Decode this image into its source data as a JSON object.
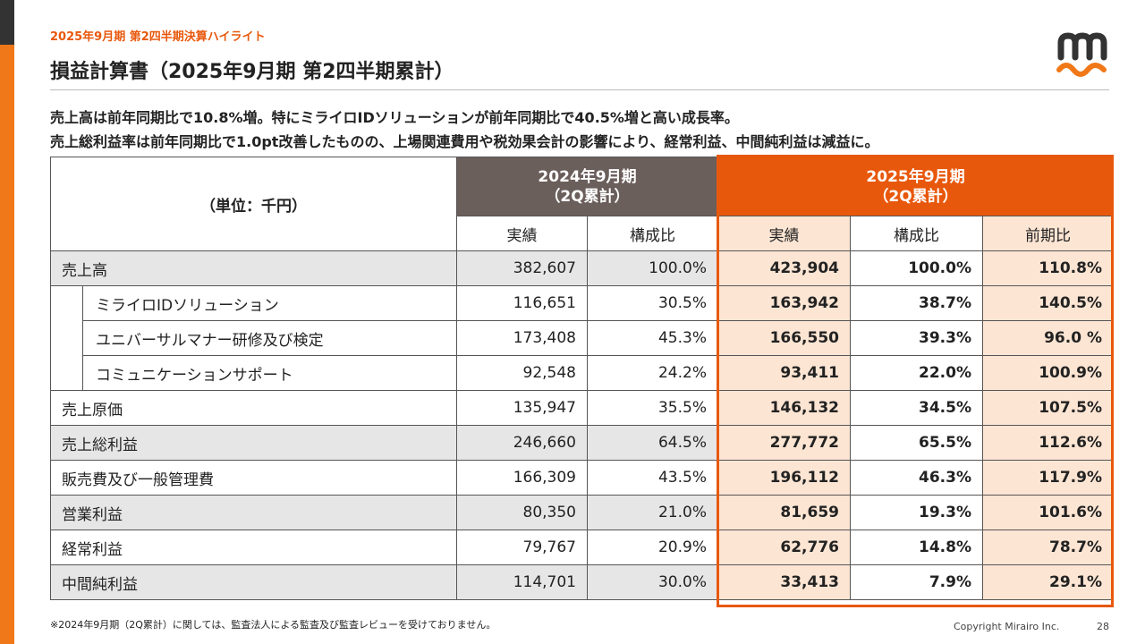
{
  "header": {
    "subtitle": "2025年9月期  第2四半期決算ハイライト",
    "title": "損益計算書（2025年9月期 第2四半期累計）",
    "brand_color": "#e8580c"
  },
  "summary": {
    "line1": "売上高は前年同期比で10.8%増。特にミライロIDソリューションが前年同期比で40.5%増と高い成長率。",
    "line2": "売上総利益率は前年同期比で1.0pt改善したものの、上場関連費用や税効果会計の影響により、経常利益、中間純利益は減益に。"
  },
  "table": {
    "unit_label": "（単位：千円）",
    "prev_period": {
      "line1": "2024年9月期",
      "line2": "（2Q累計）"
    },
    "curr_period": {
      "line1": "2025年9月期",
      "line2": "（2Q累計）"
    },
    "col_actual": "実績",
    "col_ratio": "構成比",
    "col_yoy": "前期比",
    "rows": [
      {
        "label": "売上高",
        "prev": "382,607",
        "prev_ratio": "100.0%",
        "curr": "423,904",
        "curr_ratio": "100.0%",
        "yoy": "110.8%"
      },
      {
        "label": "ミライロIDソリューション",
        "prev": "116,651",
        "prev_ratio": "30.5%",
        "curr": "163,942",
        "curr_ratio": "38.7%",
        "yoy": "140.5%"
      },
      {
        "label": "ユニバーサルマナー研修及び検定",
        "prev": "173,408",
        "prev_ratio": "45.3%",
        "curr": "166,550",
        "curr_ratio": "39.3%",
        "yoy": "96.0 %"
      },
      {
        "label": "コミュニケーションサポート",
        "prev": "92,548",
        "prev_ratio": "24.2%",
        "curr": "93,411",
        "curr_ratio": "22.0%",
        "yoy": "100.9%"
      },
      {
        "label": "売上原価",
        "prev": "135,947",
        "prev_ratio": "35.5%",
        "curr": "146,132",
        "curr_ratio": "34.5%",
        "yoy": "107.5%"
      },
      {
        "label": "売上総利益",
        "prev": "246,660",
        "prev_ratio": "64.5%",
        "curr": "277,772",
        "curr_ratio": "65.5%",
        "yoy": "112.6%"
      },
      {
        "label": "販売費及び一般管理費",
        "prev": "166,309",
        "prev_ratio": "43.5%",
        "curr": "196,112",
        "curr_ratio": "46.3%",
        "yoy": "117.9%"
      },
      {
        "label": "営業利益",
        "prev": "80,350",
        "prev_ratio": "21.0%",
        "curr": "81,659",
        "curr_ratio": "19.3%",
        "yoy": "101.6%"
      },
      {
        "label": "経常利益",
        "prev": "79,767",
        "prev_ratio": "20.9%",
        "curr": "62,776",
        "curr_ratio": "14.8%",
        "yoy": "78.7%"
      },
      {
        "label": "中間純利益",
        "prev": "114,701",
        "prev_ratio": "30.0%",
        "curr": "33,413",
        "curr_ratio": "7.9%",
        "yoy": "29.1%"
      }
    ]
  },
  "footer": {
    "note": "※2024年9月期（2Q累計）に関しては、監査法人による監査及び監査レビューを受けておりません。",
    "copyright": "Copyright Mirairo Inc.",
    "page": "28"
  }
}
